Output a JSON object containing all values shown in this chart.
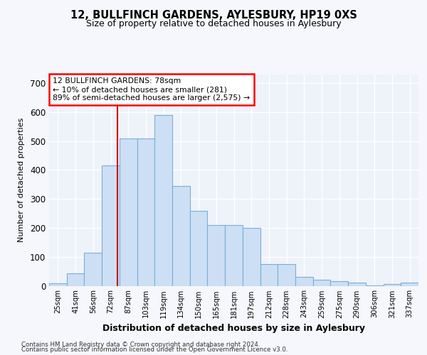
{
  "title": "12, BULLFINCH GARDENS, AYLESBURY, HP19 0XS",
  "subtitle": "Size of property relative to detached houses in Aylesbury",
  "xlabel": "Distribution of detached houses by size in Aylesbury",
  "ylabel": "Number of detached properties",
  "bar_color": "#ccdff5",
  "bar_edge_color": "#7aafd4",
  "background_color": "#eef2f9",
  "grid_color": "#ffffff",
  "categories": [
    "25sqm",
    "41sqm",
    "56sqm",
    "72sqm",
    "87sqm",
    "103sqm",
    "119sqm",
    "134sqm",
    "150sqm",
    "165sqm",
    "181sqm",
    "197sqm",
    "212sqm",
    "228sqm",
    "243sqm",
    "259sqm",
    "275sqm",
    "290sqm",
    "306sqm",
    "321sqm",
    "337sqm"
  ],
  "values": [
    8,
    42,
    115,
    415,
    508,
    508,
    590,
    345,
    260,
    210,
    210,
    200,
    75,
    75,
    30,
    22,
    15,
    10,
    2,
    7,
    10
  ],
  "ylim": [
    0,
    730
  ],
  "yticks": [
    0,
    100,
    200,
    300,
    400,
    500,
    600,
    700
  ],
  "annotation_title": "12 BULLFINCH GARDENS: 78sqm",
  "annotation_line1": "← 10% of detached houses are smaller (281)",
  "annotation_line2": "89% of semi-detached houses are larger (2,575) →",
  "vline_color": "#cc0000",
  "footer1": "Contains HM Land Registry data © Crown copyright and database right 2024.",
  "footer2": "Contains public sector information licensed under the Open Government Licence v3.0."
}
